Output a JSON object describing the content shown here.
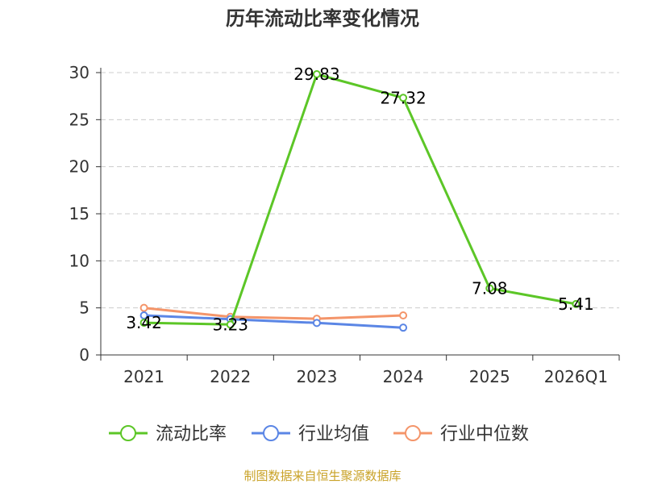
{
  "title": "历年流动比率变化情况",
  "source": "制图数据来自恒生聚源数据库",
  "chart_data": {
    "type": "line",
    "categories": [
      "2021",
      "2022",
      "2023",
      "2024",
      "2025",
      "2026Q1"
    ],
    "ylim": [
      0,
      30
    ],
    "yticks": [
      0,
      5,
      10,
      15,
      20,
      25,
      30
    ],
    "grid": true,
    "legend_position": "bottom",
    "series": [
      {
        "name": "流动比率",
        "color": "#5cc627",
        "values": [
          3.42,
          3.23,
          29.83,
          27.32,
          7.08,
          5.41
        ],
        "labels": [
          "3.42",
          "3.23",
          "29.83",
          "27.32",
          "7.08",
          "5.41"
        ]
      },
      {
        "name": "行业均值",
        "color": "#5b86e5",
        "values": [
          4.2,
          3.8,
          3.4,
          2.9,
          null,
          null
        ]
      },
      {
        "name": "行业中位数",
        "color": "#f4956a",
        "values": [
          5.0,
          4.05,
          3.85,
          4.2,
          null,
          null
        ]
      }
    ]
  }
}
